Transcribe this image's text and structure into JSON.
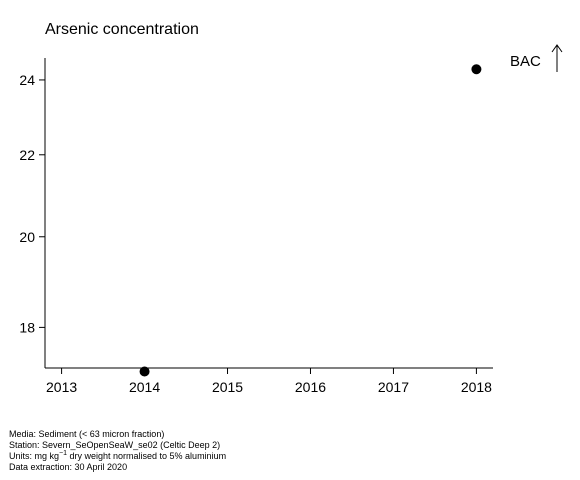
{
  "chart_data": {
    "type": "scatter",
    "title": "Arsenic concentration",
    "xlabel": "",
    "ylabel": "",
    "x_ticks": [
      2013,
      2014,
      2015,
      2016,
      2017,
      2018
    ],
    "y_ticks": [
      18,
      20,
      22,
      24
    ],
    "xlim": [
      2012.8,
      2018.2
    ],
    "ylim": [
      17.17,
      24.62
    ],
    "y_scale": "log",
    "grid": false,
    "series": [
      {
        "points": [
          {
            "x": 2014,
            "y": 17.1
          },
          {
            "x": 2018,
            "y": 24.3
          }
        ],
        "marker": "circle",
        "color": "#000000"
      }
    ],
    "annotations": [
      {
        "text": "BAC",
        "arrow": "up",
        "position": "top-right, outside plot"
      }
    ]
  },
  "footer": {
    "media": "Media: Sediment (< 63 micron fraction)",
    "station": "Station: Severn_SeOpenSeaW_se02 (Celtic Deep 2)",
    "units_prefix": "Units:  mg kg",
    "units_exp": "−1",
    "units_suffix": " dry weight normalised to 5% aluminium",
    "extraction": "Data extraction: 30 April 2020"
  }
}
